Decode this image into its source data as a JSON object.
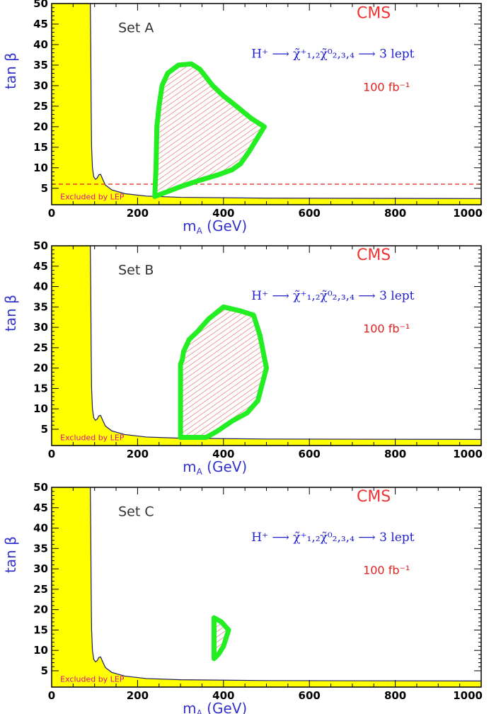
{
  "chart_data": [
    {
      "type": "area",
      "panel_label": "Set A",
      "experiment": "CMS",
      "process": "H⁺ ⟶ χ̃⁺₁,₂χ̃⁰₂,₃,₄ ⟶ 3 lept",
      "luminosity": "100 fb⁻¹",
      "xlabel": "m_A (GeV)",
      "ylabel": "tan β",
      "xlim": [
        0,
        1000
      ],
      "ylim": [
        1,
        50
      ],
      "xticks": [
        0,
        200,
        400,
        600,
        800,
        1000
      ],
      "yticks": [
        5,
        10,
        15,
        20,
        25,
        30,
        35,
        40,
        45,
        50
      ],
      "excluded_label": "Excluded by LEP",
      "excluded_color": "#ffff00",
      "contour_color": "#22ee22",
      "dashed_line_tanb": 6,
      "excluded_lep_boundary": [
        [
          90,
          50
        ],
        [
          91,
          40
        ],
        [
          92,
          25
        ],
        [
          93,
          15
        ],
        [
          95,
          10
        ],
        [
          98,
          7.8
        ],
        [
          102,
          7.2
        ],
        [
          106,
          7.5
        ],
        [
          110,
          8.3
        ],
        [
          114,
          8.4
        ],
        [
          118,
          7.4
        ],
        [
          125,
          5.8
        ],
        [
          140,
          4.6
        ],
        [
          170,
          3.7
        ],
        [
          220,
          3.1
        ],
        [
          300,
          2.8
        ],
        [
          500,
          2.6
        ],
        [
          1000,
          2.5
        ]
      ],
      "signal_region": [
        [
          240,
          3
        ],
        [
          243,
          10
        ],
        [
          245,
          20
        ],
        [
          250,
          25
        ],
        [
          257,
          30
        ],
        [
          270,
          33
        ],
        [
          295,
          35
        ],
        [
          325,
          35.3
        ],
        [
          345,
          34
        ],
        [
          375,
          30
        ],
        [
          400,
          27.5
        ],
        [
          430,
          25
        ],
        [
          465,
          22
        ],
        [
          495,
          20
        ],
        [
          460,
          14
        ],
        [
          440,
          11
        ],
        [
          420,
          9.5
        ],
        [
          385,
          8.2
        ],
        [
          340,
          6.8
        ],
        [
          300,
          5.4
        ],
        [
          265,
          4
        ],
        [
          240,
          3
        ]
      ]
    },
    {
      "type": "area",
      "panel_label": "Set B",
      "experiment": "CMS",
      "process": "H⁺ ⟶ χ̃⁺₁,₂χ̃⁰₂,₃,₄ ⟶ 3 lept",
      "luminosity": "100 fb⁻¹",
      "xlabel": "m_A (GeV)",
      "ylabel": "tan β",
      "xlim": [
        0,
        1000
      ],
      "ylim": [
        1,
        50
      ],
      "xticks": [
        0,
        200,
        400,
        600,
        800,
        1000
      ],
      "yticks": [
        5,
        10,
        15,
        20,
        25,
        30,
        35,
        40,
        45,
        50
      ],
      "excluded_label": "Excluded by LEP",
      "excluded_color": "#ffff00",
      "contour_color": "#22ee22",
      "excluded_lep_boundary": [
        [
          90,
          50
        ],
        [
          91,
          40
        ],
        [
          92,
          25
        ],
        [
          93,
          15
        ],
        [
          95,
          10
        ],
        [
          98,
          7.8
        ],
        [
          102,
          7.2
        ],
        [
          106,
          7.5
        ],
        [
          110,
          8.3
        ],
        [
          114,
          8.4
        ],
        [
          118,
          7.4
        ],
        [
          125,
          5.8
        ],
        [
          140,
          4.6
        ],
        [
          170,
          3.7
        ],
        [
          220,
          3.1
        ],
        [
          300,
          2.8
        ],
        [
          500,
          2.6
        ],
        [
          1000,
          2.5
        ]
      ],
      "signal_region": [
        [
          300,
          3
        ],
        [
          300,
          21
        ],
        [
          304,
          22
        ],
        [
          307,
          24
        ],
        [
          320,
          27
        ],
        [
          340,
          29
        ],
        [
          365,
          32
        ],
        [
          400,
          35
        ],
        [
          440,
          34
        ],
        [
          470,
          33
        ],
        [
          485,
          28
        ],
        [
          500,
          20
        ],
        [
          480,
          12
        ],
        [
          455,
          9
        ],
        [
          420,
          7
        ],
        [
          385,
          4.5
        ],
        [
          360,
          3
        ],
        [
          300,
          3
        ]
      ]
    },
    {
      "type": "area",
      "panel_label": "Set C",
      "experiment": "CMS",
      "process": "H⁺ ⟶ χ̃⁺₁,₂χ̃⁰₂,₃,₄ ⟶ 3 lept",
      "luminosity": "100 fb⁻¹",
      "xlabel": "m_A (GeV)",
      "ylabel": "tan β",
      "xlim": [
        0,
        1000
      ],
      "ylim": [
        1,
        50
      ],
      "xticks": [
        0,
        200,
        400,
        600,
        800,
        1000
      ],
      "yticks": [
        5,
        10,
        15,
        20,
        25,
        30,
        35,
        40,
        45,
        50
      ],
      "excluded_label": "Excluded by LEP",
      "excluded_color": "#ffff00",
      "contour_color": "#22ee22",
      "excluded_lep_boundary": [
        [
          90,
          50
        ],
        [
          91,
          40
        ],
        [
          92,
          25
        ],
        [
          93,
          15
        ],
        [
          95,
          10
        ],
        [
          98,
          7.8
        ],
        [
          102,
          7.2
        ],
        [
          106,
          7.5
        ],
        [
          110,
          8.3
        ],
        [
          114,
          8.4
        ],
        [
          118,
          7.4
        ],
        [
          125,
          5.8
        ],
        [
          140,
          4.6
        ],
        [
          170,
          3.7
        ],
        [
          220,
          3.1
        ],
        [
          300,
          2.8
        ],
        [
          500,
          2.6
        ],
        [
          1000,
          2.5
        ]
      ],
      "signal_region": [
        [
          378,
          8
        ],
        [
          378,
          18
        ],
        [
          395,
          17
        ],
        [
          412,
          15
        ],
        [
          400,
          11
        ],
        [
          388,
          9
        ],
        [
          378,
          8
        ]
      ]
    }
  ]
}
